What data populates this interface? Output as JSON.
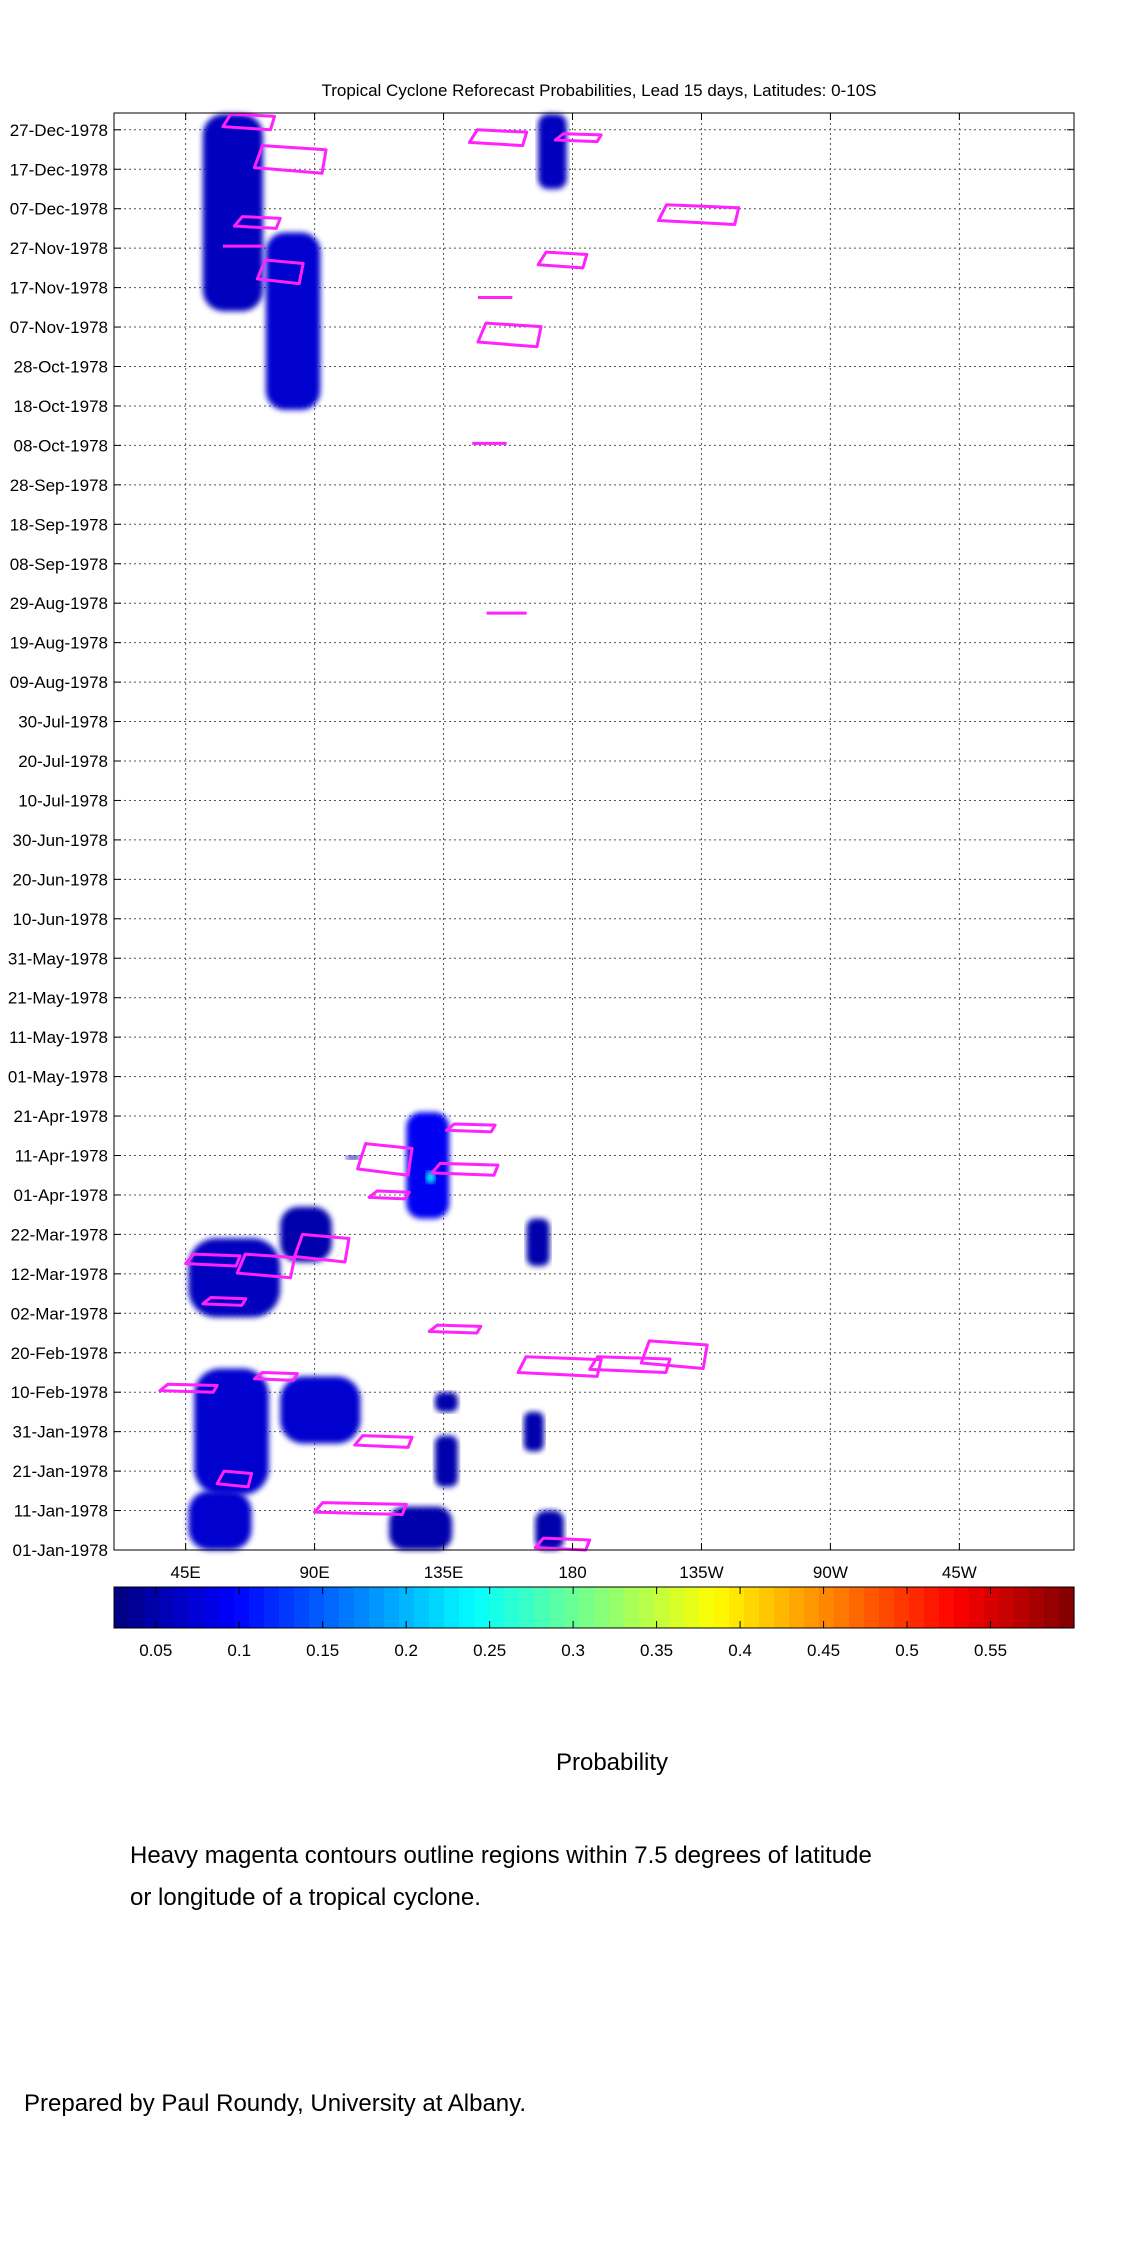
{
  "chart_data": {
    "type": "heatmap",
    "title": "Tropical Cyclone Reforecast Probabilities, Lead 15 days, Latitudes: 0-10S",
    "y_tick_labels": [
      "27-Dec-1978",
      "17-Dec-1978",
      "07-Dec-1978",
      "27-Nov-1978",
      "17-Nov-1978",
      "07-Nov-1978",
      "28-Oct-1978",
      "18-Oct-1978",
      "08-Oct-1978",
      "28-Sep-1978",
      "18-Sep-1978",
      "08-Sep-1978",
      "29-Aug-1978",
      "19-Aug-1978",
      "09-Aug-1978",
      "30-Jul-1978",
      "20-Jul-1978",
      "10-Jul-1978",
      "30-Jun-1978",
      "20-Jun-1978",
      "10-Jun-1978",
      "31-May-1978",
      "21-May-1978",
      "11-May-1978",
      "01-May-1978",
      "21-Apr-1978",
      "11-Apr-1978",
      "01-Apr-1978",
      "22-Mar-1978",
      "12-Mar-1978",
      "02-Mar-1978",
      "20-Feb-1978",
      "10-Feb-1978",
      "31-Jan-1978",
      "21-Jan-1978",
      "11-Jan-1978",
      "01-Jan-1978"
    ],
    "x_tick_labels": [
      "45E",
      "90E",
      "135E",
      "180",
      "135W",
      "90W",
      "45W"
    ],
    "x_range_deg_east": [
      20,
      355
    ],
    "grid": true,
    "colorbar": {
      "label": "Probability",
      "range": [
        0.025,
        0.6
      ],
      "tick_labels": [
        "0.05",
        "0.1",
        "0.15",
        "0.2",
        "0.25",
        "0.3",
        "0.35",
        "0.4",
        "0.45",
        "0.5",
        "0.55"
      ],
      "tick_values": [
        0.05,
        0.1,
        0.15,
        0.2,
        0.25,
        0.3,
        0.35,
        0.4,
        0.45,
        0.5,
        0.55
      ]
    },
    "probability_regions": [
      {
        "lon": [
          51,
          72
        ],
        "day_of_year": [
          315,
          365
        ],
        "p": 0.06
      },
      {
        "lon": [
          73,
          92
        ],
        "day_of_year": [
          290,
          335
        ],
        "p": 0.07
      },
      {
        "lon": [
          168,
          178
        ],
        "day_of_year": [
          346,
          365
        ],
        "p": 0.06
      },
      {
        "lon": [
          101,
          106
        ],
        "day_of_year": [
          100,
          101
        ],
        "p": 0.05
      },
      {
        "lon": [
          122,
          137
        ],
        "day_of_year": [
          85,
          112
        ],
        "p": 0.09
      },
      {
        "lon": [
          129,
          132
        ],
        "day_of_year": [
          94,
          97
        ],
        "p": 0.24
      },
      {
        "lon": [
          164,
          172
        ],
        "day_of_year": [
          73,
          85
        ],
        "p": 0.05
      },
      {
        "lon": [
          46,
          78
        ],
        "day_of_year": [
          60,
          80
        ],
        "p": 0.06
      },
      {
        "lon": [
          78,
          96
        ],
        "day_of_year": [
          74,
          88
        ],
        "p": 0.05
      },
      {
        "lon": [
          48,
          74
        ],
        "day_of_year": [
          15,
          47
        ],
        "p": 0.07
      },
      {
        "lon": [
          78,
          106
        ],
        "day_of_year": [
          28,
          45
        ],
        "p": 0.07
      },
      {
        "lon": [
          46,
          68
        ],
        "day_of_year": [
          1,
          16
        ],
        "p": 0.07
      },
      {
        "lon": [
          132,
          140
        ],
        "day_of_year": [
          17,
          30
        ],
        "p": 0.05
      },
      {
        "lon": [
          116,
          138
        ],
        "day_of_year": [
          1,
          12
        ],
        "p": 0.05
      },
      {
        "lon": [
          132,
          140
        ],
        "day_of_year": [
          36,
          41
        ],
        "p": 0.05
      },
      {
        "lon": [
          163,
          170
        ],
        "day_of_year": [
          26,
          36
        ],
        "p": 0.05
      },
      {
        "lon": [
          167,
          177
        ],
        "day_of_year": [
          1,
          11
        ],
        "p": 0.05
      }
    ],
    "cyclone_contours": [
      {
        "lon": [
          58,
          76
        ],
        "day_of_year": [
          361,
          365
        ]
      },
      {
        "lon": [
          69,
          94
        ],
        "day_of_year": [
          350,
          357
        ]
      },
      {
        "lon": [
          144,
          164
        ],
        "day_of_year": [
          357,
          361
        ]
      },
      {
        "lon": [
          174,
          190
        ],
        "day_of_year": [
          358,
          360
        ]
      },
      {
        "lon": [
          210,
          238
        ],
        "day_of_year": [
          337,
          342
        ]
      },
      {
        "lon": [
          62,
          78
        ],
        "day_of_year": [
          336,
          339
        ]
      },
      {
        "lon": [
          58,
          72
        ],
        "day_of_year": [
          331,
          332
        ]
      },
      {
        "lon": [
          70,
          86
        ],
        "day_of_year": [
          322,
          328
        ]
      },
      {
        "lon": [
          168,
          185
        ],
        "day_of_year": [
          326,
          330
        ]
      },
      {
        "lon": [
          147,
          159
        ],
        "day_of_year": [
          318,
          319
        ]
      },
      {
        "lon": [
          147,
          169
        ],
        "day_of_year": [
          306,
          312
        ]
      },
      {
        "lon": [
          145,
          157
        ],
        "day_of_year": [
          281,
          282
        ]
      },
      {
        "lon": [
          150,
          164
        ],
        "day_of_year": [
          238,
          239
        ]
      },
      {
        "lon": [
          136,
          153
        ],
        "day_of_year": [
          107,
          109
        ]
      },
      {
        "lon": [
          105,
          124
        ],
        "day_of_year": [
          96,
          104
        ]
      },
      {
        "lon": [
          131,
          154
        ],
        "day_of_year": [
          96,
          99
        ]
      },
      {
        "lon": [
          109,
          123
        ],
        "day_of_year": [
          90,
          92
        ]
      },
      {
        "lon": [
          83,
          102
        ],
        "day_of_year": [
          74,
          81
        ]
      },
      {
        "lon": [
          45,
          64
        ],
        "day_of_year": [
          73,
          76
        ]
      },
      {
        "lon": [
          63,
          83
        ],
        "day_of_year": [
          70,
          76
        ]
      },
      {
        "lon": [
          51,
          66
        ],
        "day_of_year": [
          63,
          65
        ]
      },
      {
        "lon": [
          130,
          148
        ],
        "day_of_year": [
          56,
          58
        ]
      },
      {
        "lon": [
          161,
          190
        ],
        "day_of_year": [
          45,
          50
        ]
      },
      {
        "lon": [
          186,
          214
        ],
        "day_of_year": [
          46,
          50
        ]
      },
      {
        "lon": [
          204,
          227
        ],
        "day_of_year": [
          47,
          54
        ]
      },
      {
        "lon": [
          36,
          56
        ],
        "day_of_year": [
          41,
          43
        ]
      },
      {
        "lon": [
          69,
          84
        ],
        "day_of_year": [
          44,
          46
        ]
      },
      {
        "lon": [
          104,
          124
        ],
        "day_of_year": [
          27,
          30
        ]
      },
      {
        "lon": [
          56,
          68
        ],
        "day_of_year": [
          17,
          21
        ]
      },
      {
        "lon": [
          90,
          122
        ],
        "day_of_year": [
          10,
          13
        ]
      },
      {
        "lon": [
          167,
          186
        ],
        "day_of_year": [
          1,
          4
        ]
      }
    ]
  },
  "notes": {
    "contour_caption_line1": "Heavy magenta contours outline regions within 7.5 degrees of latitude",
    "contour_caption_line2": "or longitude of a tropical cyclone.",
    "credit": "Prepared by Paul Roundy, University at Albany."
  },
  "colors": {
    "contour": "#ff22ff",
    "grid": "#555555"
  }
}
